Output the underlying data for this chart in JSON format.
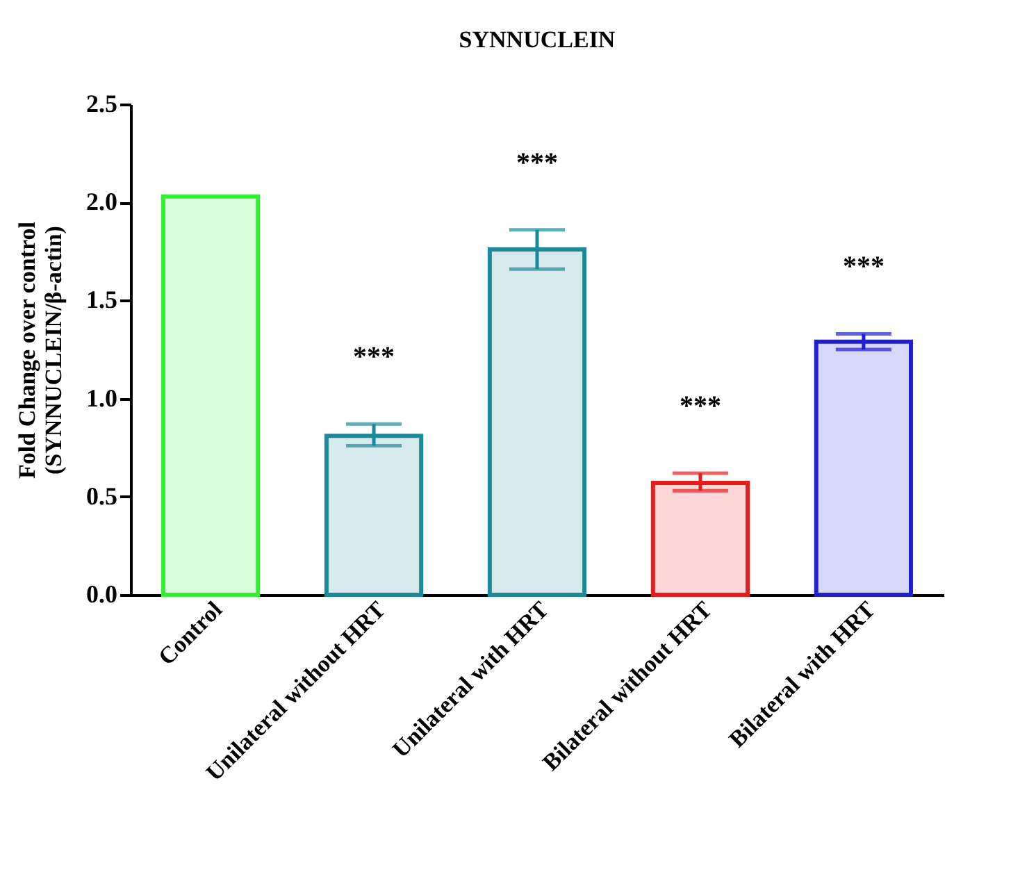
{
  "chart_data": {
    "type": "bar",
    "title": "SYNNUCLEIN",
    "ylabel": "Fold Change over control\n(SYNNUCLEIN/β-actin)",
    "categories": [
      "Control",
      "Unilateral without HRT",
      "Unilateral with HRT",
      "Bilateral without HRT",
      "Bilateral with HRT"
    ],
    "values": [
      2.03,
      0.81,
      1.76,
      0.57,
      1.29
    ],
    "colors": [
      "#33ee33",
      "#1a8a9a",
      "#1a8a9a",
      "#e81c1c",
      "#2020d0"
    ],
    "errors": [
      null,
      [
        0.76,
        0.87
      ],
      [
        1.66,
        1.86
      ],
      [
        0.53,
        0.62
      ],
      [
        1.25,
        1.33
      ]
    ],
    "ylim": [
      0,
      2.5
    ],
    "yticks": [
      {
        "value": 0,
        "label": "0.0"
      },
      0.5,
      {
        "value": 1,
        "label": "1.0"
      },
      1.5,
      {
        "value": 2,
        "label": "2.0"
      },
      2.5
    ],
    "grid": false,
    "annotations": [
      "***",
      "***",
      "***",
      "***"
    ]
  }
}
